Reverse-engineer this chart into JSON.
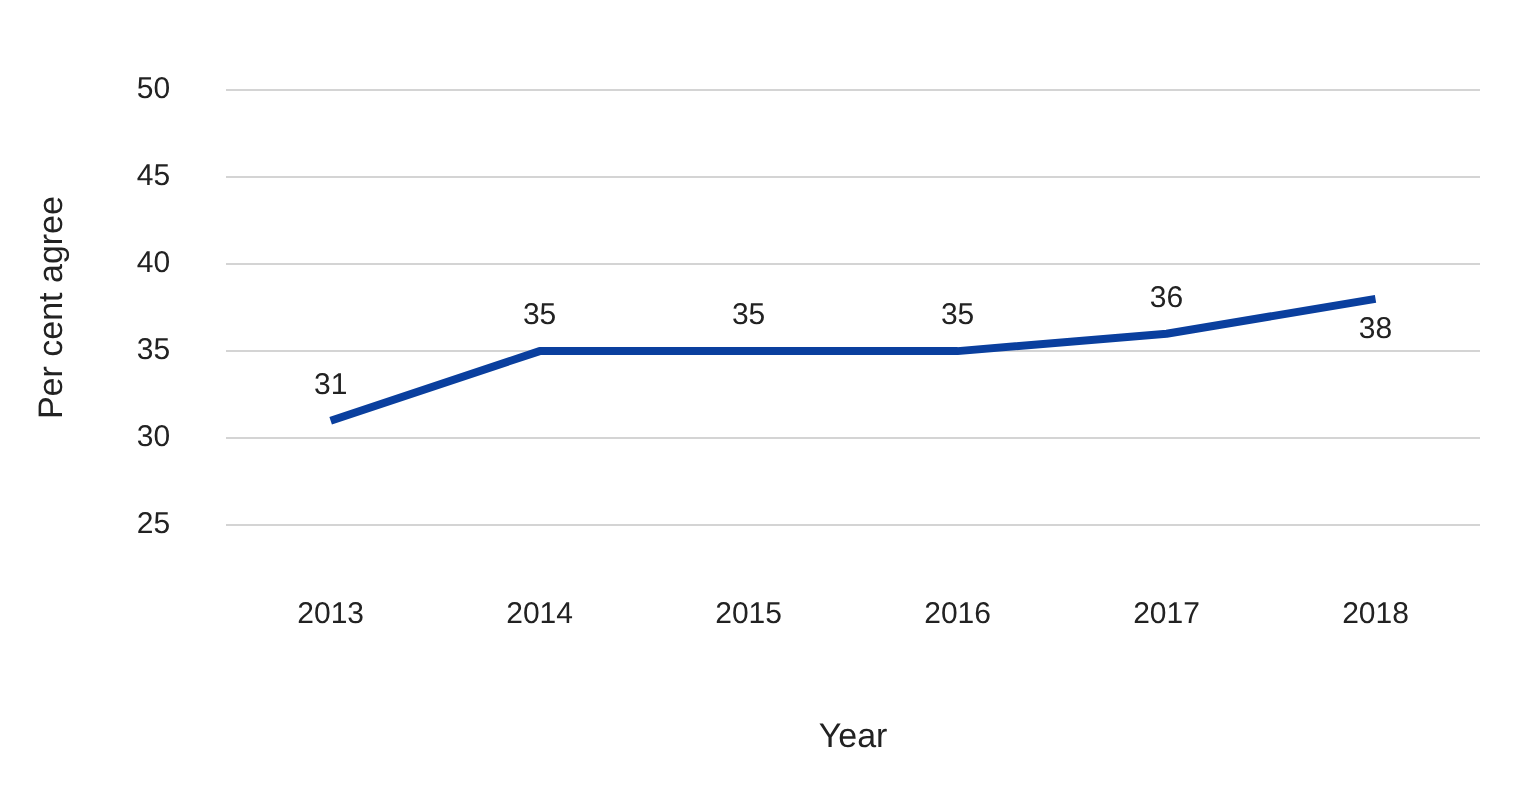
{
  "chart_data": {
    "type": "line",
    "xlabel": "Year",
    "ylabel": "Per cent agree",
    "categories": [
      "2013",
      "2014",
      "2015",
      "2016",
      "2017",
      "2018"
    ],
    "series": [
      {
        "color": "#0a3f9e",
        "values": [
          31,
          35,
          35,
          35,
          36,
          38
        ]
      }
    ],
    "ylim": [
      25,
      50
    ],
    "yticks": [
      25,
      30,
      35,
      40,
      45,
      50
    ],
    "grid": "y",
    "legend": false,
    "data_labels": true,
    "marker": "none",
    "line_style": "solid"
  }
}
